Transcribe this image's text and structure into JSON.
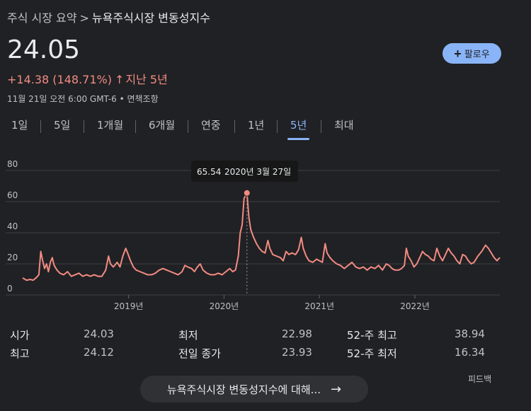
{
  "breadcrumb": {
    "parent": "주식 시장 요약",
    "separator": ">",
    "current": "뉴욕주식시장 변동성지수"
  },
  "quote": {
    "price": "24.05",
    "change": "+14.38 (148.71%)",
    "change_arrow": "↑",
    "period": "지난 5년",
    "timestamp": "11월 21일 오전 6:00 GMT-6 • 면책조항"
  },
  "follow_button": {
    "icon": "plus-icon",
    "label": "팔로우"
  },
  "tabs": [
    {
      "label": "1일",
      "active": false
    },
    {
      "label": "5일",
      "active": false
    },
    {
      "label": "1개월",
      "active": false
    },
    {
      "label": "6개월",
      "active": false
    },
    {
      "label": "연중",
      "active": false
    },
    {
      "label": "1년",
      "active": false
    },
    {
      "label": "5년",
      "active": true
    },
    {
      "label": "최대",
      "active": false
    }
  ],
  "chart_data": {
    "type": "line",
    "color": "#f28b82",
    "ylim": [
      0,
      80
    ],
    "yticks": [
      0,
      20,
      40,
      60,
      80
    ],
    "xticks": [
      {
        "label": "2019년",
        "x": 2019.0
      },
      {
        "label": "2020년",
        "x": 2020.0
      },
      {
        "label": "2021년",
        "x": 2021.0
      },
      {
        "label": "2022년",
        "x": 2022.0
      }
    ],
    "xlim": [
      2017.89,
      2022.89
    ],
    "grid": true,
    "tooltip": {
      "value": "65.54",
      "date": "2020년 3월 27일",
      "x": 2020.24
    },
    "points": [
      [
        2017.89,
        11
      ],
      [
        2017.93,
        9.5
      ],
      [
        2017.97,
        10
      ],
      [
        2018.0,
        9.5
      ],
      [
        2018.03,
        11
      ],
      [
        2018.06,
        13
      ],
      [
        2018.08,
        28
      ],
      [
        2018.1,
        22
      ],
      [
        2018.12,
        17
      ],
      [
        2018.14,
        20
      ],
      [
        2018.16,
        15
      ],
      [
        2018.18,
        21
      ],
      [
        2018.2,
        24
      ],
      [
        2018.22,
        19
      ],
      [
        2018.25,
        16
      ],
      [
        2018.28,
        14
      ],
      [
        2018.32,
        13
      ],
      [
        2018.36,
        15
      ],
      [
        2018.4,
        12
      ],
      [
        2018.44,
        13
      ],
      [
        2018.48,
        14
      ],
      [
        2018.52,
        12
      ],
      [
        2018.56,
        13
      ],
      [
        2018.6,
        12
      ],
      [
        2018.64,
        13
      ],
      [
        2018.68,
        12
      ],
      [
        2018.72,
        12
      ],
      [
        2018.76,
        16
      ],
      [
        2018.79,
        25
      ],
      [
        2018.81,
        20
      ],
      [
        2018.84,
        18
      ],
      [
        2018.88,
        21
      ],
      [
        2018.91,
        18
      ],
      [
        2018.94,
        25
      ],
      [
        2018.97,
        30
      ],
      [
        2018.99,
        27
      ],
      [
        2019.02,
        22
      ],
      [
        2019.05,
        18
      ],
      [
        2019.08,
        16
      ],
      [
        2019.12,
        15
      ],
      [
        2019.16,
        14
      ],
      [
        2019.2,
        13
      ],
      [
        2019.24,
        13
      ],
      [
        2019.28,
        14
      ],
      [
        2019.32,
        16
      ],
      [
        2019.36,
        17
      ],
      [
        2019.4,
        16
      ],
      [
        2019.44,
        15
      ],
      [
        2019.48,
        14
      ],
      [
        2019.52,
        13
      ],
      [
        2019.56,
        15
      ],
      [
        2019.59,
        19
      ],
      [
        2019.62,
        18
      ],
      [
        2019.66,
        17
      ],
      [
        2019.69,
        15
      ],
      [
        2019.72,
        18
      ],
      [
        2019.75,
        20
      ],
      [
        2019.78,
        16
      ],
      [
        2019.82,
        14
      ],
      [
        2019.86,
        13
      ],
      [
        2019.9,
        13
      ],
      [
        2019.94,
        14
      ],
      [
        2019.98,
        13
      ],
      [
        2020.02,
        15
      ],
      [
        2020.06,
        17
      ],
      [
        2020.09,
        15
      ],
      [
        2020.12,
        16
      ],
      [
        2020.15,
        25
      ],
      [
        2020.17,
        40
      ],
      [
        2020.19,
        45
      ],
      [
        2020.21,
        62
      ],
      [
        2020.24,
        65.54
      ],
      [
        2020.26,
        50
      ],
      [
        2020.28,
        42
      ],
      [
        2020.31,
        37
      ],
      [
        2020.34,
        33
      ],
      [
        2020.37,
        30
      ],
      [
        2020.4,
        28
      ],
      [
        2020.43,
        27
      ],
      [
        2020.46,
        35
      ],
      [
        2020.48,
        30
      ],
      [
        2020.51,
        26
      ],
      [
        2020.55,
        25
      ],
      [
        2020.59,
        24
      ],
      [
        2020.62,
        22
      ],
      [
        2020.65,
        28
      ],
      [
        2020.68,
        26
      ],
      [
        2020.71,
        27
      ],
      [
        2020.75,
        26
      ],
      [
        2020.78,
        29
      ],
      [
        2020.81,
        37
      ],
      [
        2020.83,
        30
      ],
      [
        2020.86,
        25
      ],
      [
        2020.89,
        22
      ],
      [
        2020.93,
        21
      ],
      [
        2020.97,
        23
      ],
      [
        2021.0,
        22
      ],
      [
        2021.03,
        21
      ],
      [
        2021.06,
        33
      ],
      [
        2021.08,
        27
      ],
      [
        2021.11,
        24
      ],
      [
        2021.14,
        22
      ],
      [
        2021.18,
        20
      ],
      [
        2021.22,
        19
      ],
      [
        2021.26,
        17
      ],
      [
        2021.3,
        19
      ],
      [
        2021.34,
        21
      ],
      [
        2021.38,
        18
      ],
      [
        2021.42,
        17
      ],
      [
        2021.46,
        18
      ],
      [
        2021.5,
        16
      ],
      [
        2021.54,
        18
      ],
      [
        2021.58,
        17
      ],
      [
        2021.62,
        19
      ],
      [
        2021.66,
        16
      ],
      [
        2021.7,
        20
      ],
      [
        2021.73,
        19
      ],
      [
        2021.76,
        17
      ],
      [
        2021.79,
        16
      ],
      [
        2021.83,
        16
      ],
      [
        2021.86,
        17
      ],
      [
        2021.89,
        19
      ],
      [
        2021.91,
        30
      ],
      [
        2021.93,
        25
      ],
      [
        2021.96,
        22
      ],
      [
        2021.99,
        18
      ],
      [
        2022.02,
        20
      ],
      [
        2022.05,
        24
      ],
      [
        2022.08,
        28
      ],
      [
        2022.11,
        26
      ],
      [
        2022.14,
        25
      ],
      [
        2022.17,
        23
      ],
      [
        2022.2,
        22
      ],
      [
        2022.23,
        30
      ],
      [
        2022.26,
        25
      ],
      [
        2022.29,
        22
      ],
      [
        2022.32,
        26
      ],
      [
        2022.35,
        30
      ],
      [
        2022.38,
        27
      ],
      [
        2022.41,
        25
      ],
      [
        2022.44,
        22
      ],
      [
        2022.47,
        20
      ],
      [
        2022.5,
        26
      ],
      [
        2022.53,
        25
      ],
      [
        2022.56,
        22
      ],
      [
        2022.59,
        20
      ],
      [
        2022.62,
        21
      ],
      [
        2022.66,
        25
      ],
      [
        2022.7,
        28
      ],
      [
        2022.74,
        32
      ],
      [
        2022.77,
        30
      ],
      [
        2022.8,
        27
      ],
      [
        2022.83,
        24
      ],
      [
        2022.86,
        22
      ],
      [
        2022.89,
        24.05
      ]
    ]
  },
  "stats": {
    "open_label": "시가",
    "open_value": "24.03",
    "high_label": "최고",
    "high_value": "24.12",
    "low_label": "최저",
    "low_value": "22.98",
    "prev_close_label": "전일 종가",
    "prev_close_value": "23.93",
    "wk52_high_label": "52-주 최고",
    "wk52_high_value": "38.94",
    "wk52_low_label": "52-주 최저",
    "wk52_low_value": "16.34"
  },
  "feedback": "피드백",
  "about_button": {
    "label": "뉴욕주식시장 변동성지수에 대해...",
    "icon": "arrow-right-icon"
  }
}
